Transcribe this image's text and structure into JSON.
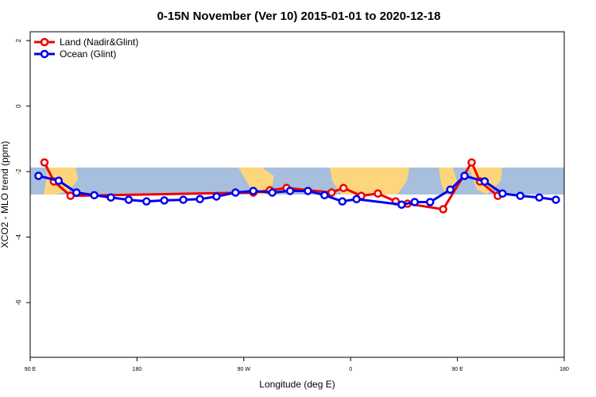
{
  "chart_data": {
    "type": "line",
    "title": "0-15N November (Ver 10)   2015-01-01 to 2020-12-18",
    "x_label": "Longitude (deg E)",
    "y_label": "XCO2 - MLO trend (ppm)",
    "xlim": [
      90,
      540
    ],
    "xticks": [
      {
        "value": 90,
        "label": "90 E"
      },
      {
        "value": 180,
        "label": "180"
      },
      {
        "value": 270,
        "label": "90 W"
      },
      {
        "value": 360,
        "label": "0"
      },
      {
        "value": 450,
        "label": "90 E"
      },
      {
        "value": 540,
        "label": "180"
      }
    ],
    "ylim": [
      -7.67,
      2.27
    ],
    "yticks": [
      2,
      0,
      -2,
      -4,
      -6
    ],
    "legend": "top-left",
    "series": [
      {
        "name": "Land (Nadir&Glint)",
        "color": "#ee0000",
        "x": [
          102,
          110,
          124,
          278,
          292,
          306,
          344,
          354,
          369,
          383,
          398,
          408,
          438,
          462,
          469,
          484
        ],
        "values": [
          -1.72,
          -2.3,
          -2.74,
          -2.64,
          -2.57,
          -2.5,
          -2.64,
          -2.5,
          -2.74,
          -2.67,
          -2.91,
          -2.98,
          -3.15,
          -1.72,
          -2.3,
          -2.74
        ]
      },
      {
        "name": "Ocean (Glint)",
        "color": "#0000ee",
        "x": [
          97,
          114,
          129,
          144,
          158,
          173,
          188,
          203,
          219,
          233,
          247,
          263,
          278,
          294,
          309,
          324,
          338,
          353,
          365,
          403,
          414,
          427,
          444,
          456,
          473,
          488,
          503,
          519,
          533
        ],
        "values": [
          -2.13,
          -2.28,
          -2.64,
          -2.72,
          -2.79,
          -2.86,
          -2.91,
          -2.88,
          -2.86,
          -2.84,
          -2.76,
          -2.64,
          -2.59,
          -2.64,
          -2.59,
          -2.59,
          -2.72,
          -2.91,
          -2.84,
          -3.01,
          -2.93,
          -2.93,
          -2.55,
          -2.13,
          -2.3,
          -2.67,
          -2.74,
          -2.79,
          -2.86
        ]
      }
    ]
  }
}
